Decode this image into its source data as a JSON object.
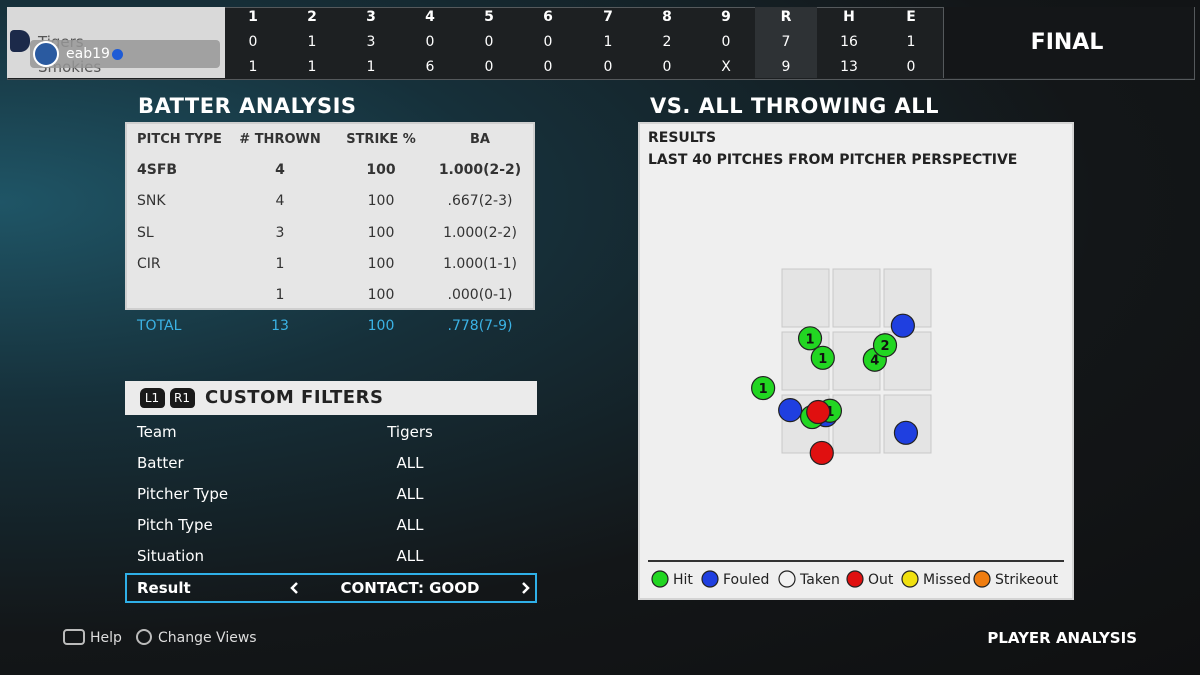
{
  "scoreboard": {
    "innings": [
      1,
      2,
      3,
      4,
      5,
      6,
      7,
      8,
      9
    ],
    "totals_headers": [
      "R",
      "H",
      "E"
    ],
    "teams": [
      {
        "name": "Tigers",
        "innings": [
          0,
          1,
          3,
          0,
          0,
          0,
          1,
          2,
          0
        ],
        "totals": [
          7,
          16,
          1
        ]
      },
      {
        "name": "Smokies",
        "innings": [
          1,
          1,
          1,
          6,
          0,
          0,
          0,
          0,
          "X"
        ],
        "totals": [
          9,
          13,
          0
        ]
      }
    ],
    "user": "eab19",
    "status": "FINAL"
  },
  "batter_analysis": {
    "title": "BATTER ANALYSIS",
    "columns": [
      "PITCH TYPE",
      "# THROWN",
      "STRIKE %",
      "BA"
    ],
    "selected_row": 0,
    "rows": [
      [
        "4SFB",
        4,
        100,
        "1.000(2-2)"
      ],
      [
        "SNK",
        4,
        100,
        ".667(2-3)"
      ],
      [
        "SL",
        3,
        100,
        "1.000(2-2)"
      ],
      [
        "CIR",
        1,
        100,
        "1.000(1-1)"
      ],
      [
        null,
        1,
        100,
        ".000(0-1)"
      ]
    ],
    "total": [
      "TOTAL",
      13,
      100,
      ".778(7-9)"
    ]
  },
  "custom_filters": {
    "buttons": [
      "L1",
      "R1"
    ],
    "title": "CUSTOM FILTERS",
    "rows": [
      [
        "Team",
        "Tigers"
      ],
      [
        "Batter",
        "ALL"
      ],
      [
        "Pitcher Type",
        "ALL"
      ],
      [
        "Pitch Type",
        "ALL"
      ],
      [
        "Situation",
        "ALL"
      ]
    ],
    "result": {
      "label": "Result",
      "value": "CONTACT: GOOD"
    }
  },
  "results_panel": {
    "title": "VS. ALL THROWING ALL",
    "heading": "RESULTS",
    "subtitle": "LAST 40 PITCHES FROM PITCHER PERSPECTIVE",
    "legend": [
      {
        "name": "Hit",
        "color": "#22d622"
      },
      {
        "name": "Fouled",
        "color": "#1f3fe0"
      },
      {
        "name": "Taken",
        "color": "#f2f2f2"
      },
      {
        "name": "Out",
        "color": "#e01010"
      },
      {
        "name": "Missed",
        "color": "#f0e010"
      },
      {
        "name": "Strikeout",
        "color": "#f07d10"
      }
    ],
    "pitches": [
      {
        "result": "Fouled",
        "x": 2.37,
        "y": 0.9
      },
      {
        "result": "Hit",
        "x": 0.55,
        "y": 1.1,
        "label": 1
      },
      {
        "result": "Hit",
        "x": 1.82,
        "y": 1.44,
        "label": 4
      },
      {
        "result": "Hit",
        "x": 2.02,
        "y": 1.21,
        "label": 2
      },
      {
        "result": "Hit",
        "x": 0.8,
        "y": 1.41,
        "label": 1
      },
      {
        "result": "Hit",
        "x": -0.37,
        "y": 1.89,
        "label": 1
      },
      {
        "result": "Fouled",
        "x": 0.16,
        "y": 2.24
      },
      {
        "result": "Fouled",
        "x": 0.86,
        "y": 2.32
      },
      {
        "result": "Hit",
        "x": 0.59,
        "y": 2.35
      },
      {
        "result": "Hit",
        "x": 0.94,
        "y": 2.25,
        "label": 1
      },
      {
        "result": "Out",
        "x": 0.71,
        "y": 2.27
      },
      {
        "result": "Fouled",
        "x": 2.43,
        "y": 2.6
      },
      {
        "result": "Out",
        "x": 0.78,
        "y": 2.92
      }
    ]
  },
  "footer": {
    "actions": [
      "Help",
      "Change Views"
    ],
    "screen": "PLAYER ANALYSIS"
  }
}
